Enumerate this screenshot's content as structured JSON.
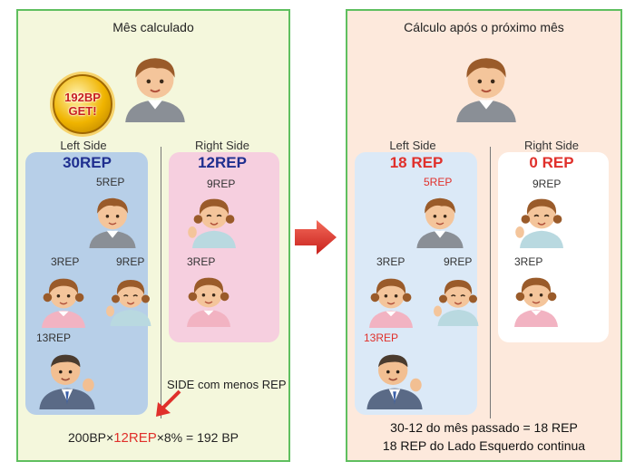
{
  "left_panel": {
    "title": "Mês calculado",
    "badge_line1": "192BP",
    "badge_line2": "GET!",
    "left_side_label": "Left Side",
    "left_side_count": "30REP",
    "right_side_label": "Right Side",
    "right_side_count": "12REP",
    "members_left": [
      "5REP",
      "3REP",
      "9REP",
      "13REP"
    ],
    "members_right": [
      "9REP",
      "3REP"
    ],
    "note": "SIDE com menos REP",
    "formula_prefix": "200BP×",
    "formula_highlight": "12REP",
    "formula_suffix": "×8% = 192 BP"
  },
  "right_panel": {
    "title": "Cálculo após o próximo mês",
    "left_side_label": "Left Side",
    "left_side_count": "18 REP",
    "right_side_label": "Right Side",
    "right_side_count": "0 REP",
    "members_left": [
      "5REP",
      "3REP",
      "9REP",
      "13REP"
    ],
    "members_right": [
      "9REP",
      "3REP"
    ],
    "result_line1": "30-12 do mês passado = 18 REP",
    "result_line2": "18 REP do Lado Esquerdo continua"
  },
  "colors": {
    "panel_border": "#5fbf5f",
    "left_count_blue": "#1f2f8f",
    "right_count_blue": "#1f2f8f",
    "red": "#e0302b",
    "arrow": "#e0302b"
  },
  "icons": [
    "boy-avatar-icon",
    "girl-avatar-icon",
    "businessman-avatar-icon",
    "gold-coin-badge-icon",
    "right-arrow-icon",
    "down-left-arrow-icon"
  ]
}
